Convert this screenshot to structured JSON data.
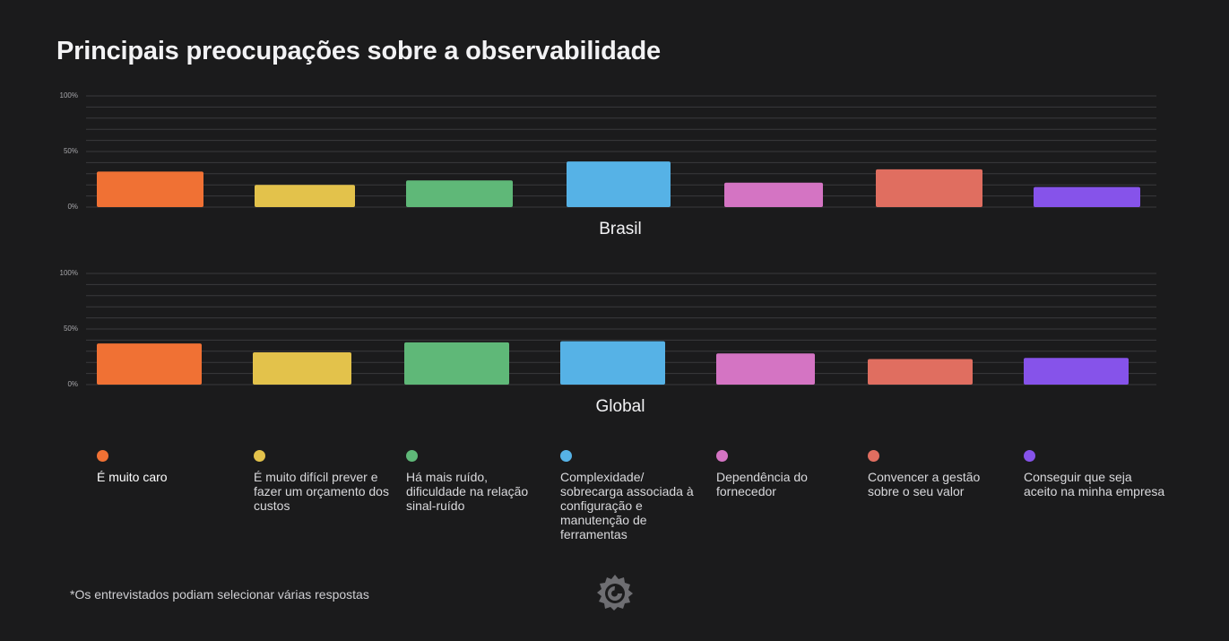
{
  "title": "Principais preocupações sobre a observabilidade",
  "chart_data": [
    {
      "type": "bar",
      "title": "Brasil",
      "categories": [
        "É muito caro",
        "É muito difícil prever e fazer um orçamento dos custos",
        "Há mais ruído, dificuldade na relação sinal-ruído",
        "Complexidade/ sobrecarga associada à configuração e manutenção de ferramentas",
        "Dependência do fornecedor",
        "Convencer a gestão sobre o seu valor",
        "Conseguir que seja aceito na minha empresa"
      ],
      "values": [
        32,
        20,
        24,
        41,
        22,
        34,
        18
      ],
      "ylim": [
        0,
        100
      ],
      "yticks": [
        "0%",
        "50%",
        "100%"
      ],
      "grid": true
    },
    {
      "type": "bar",
      "title": "Global",
      "categories": [
        "É muito caro",
        "É muito difícil prever e fazer um orçamento dos custos",
        "Há mais ruído, dificuldade na relação sinal-ruído",
        "Complexidade/ sobrecarga associada à configuração e manutenção de ferramentas",
        "Dependência do fornecedor",
        "Convencer a gestão sobre o seu valor",
        "Conseguir que seja aceito na minha empresa"
      ],
      "values": [
        37,
        29,
        38,
        39,
        28,
        23,
        24
      ],
      "ylim": [
        0,
        100
      ],
      "yticks": [
        "0%",
        "50%",
        "100%"
      ],
      "grid": true
    }
  ],
  "legend": [
    {
      "label": "É muito caro",
      "color": "#f07134"
    },
    {
      "label": "É muito difícil prever e fazer um orçamento dos custos",
      "color": "#e3c24b"
    },
    {
      "label": "Há mais ruído, dificuldade na relação sinal-ruído",
      "color": "#5fb878"
    },
    {
      "label": "Complexidade/ sobrecarga associada à configuração e manutenção de ferramentas",
      "color": "#56b2e6"
    },
    {
      "label": "Dependência do fornecedor",
      "color": "#d474c3"
    },
    {
      "label": "Convencer a gestão sobre o seu valor",
      "color": "#e06e60"
    },
    {
      "label": "Conseguir que seja aceito na minha empresa",
      "color": "#8653ea"
    }
  ],
  "footnote": "*Os entrevistados podiam selecionar várias respostas",
  "logo_icon": "grafana-logo-icon",
  "colors": {
    "background": "#1b1b1c",
    "grid": "#3a3a3d",
    "tick": "#a7a7ab"
  }
}
